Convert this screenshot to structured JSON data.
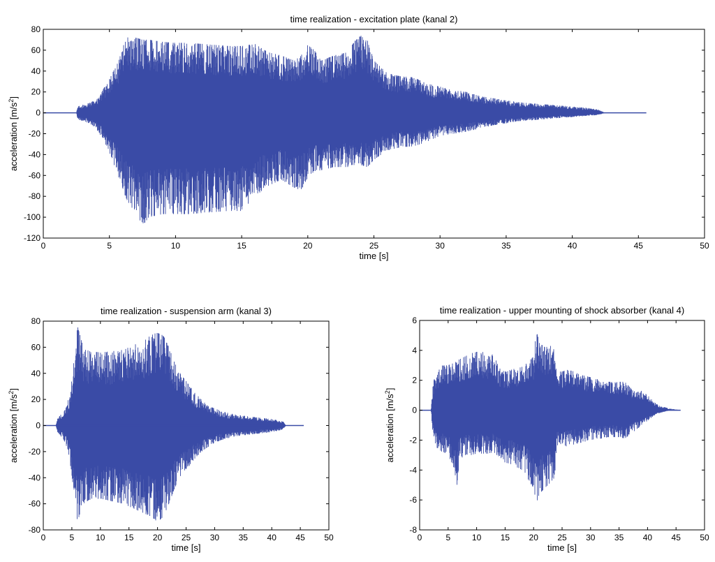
{
  "chart_data": [
    {
      "type": "line",
      "title": "time realization - excitation plate (kanal 2)",
      "xlabel": "time [s]",
      "ylabel": "acceleration [m/s",
      "ylabel_sup": "2",
      "ylabel_end": "]",
      "xlim": [
        0,
        50
      ],
      "ylim": [
        -120,
        80
      ],
      "xticks": [
        0,
        5,
        10,
        15,
        20,
        25,
        30,
        35,
        40,
        45,
        50
      ],
      "yticks": [
        -120,
        -100,
        -80,
        -60,
        -40,
        -20,
        0,
        20,
        40,
        60,
        80
      ],
      "xtick_labels": [
        "0",
        "5",
        "10",
        "15",
        "20",
        "25",
        "30",
        "35",
        "40",
        "45",
        "50"
      ],
      "ytick_labels": [
        "-120",
        "-100",
        "-80",
        "-60",
        "-40",
        "-20",
        "0",
        "20",
        "40",
        "60",
        "80"
      ],
      "color": "#3a4ba6",
      "series": [
        {
          "x": [
            0,
            2.5,
            2.6,
            3.0,
            3.5,
            4.0,
            4.5,
            5.0,
            5.5,
            6.0,
            6.2,
            6.5,
            7.0,
            7.5,
            8,
            9,
            10,
            11,
            12,
            13,
            14,
            15,
            16,
            17,
            18,
            19,
            19.5,
            20,
            20.5,
            21,
            22,
            23,
            23.5,
            24,
            24.5,
            25,
            26,
            27,
            28,
            29,
            30,
            31,
            32,
            33,
            34,
            35,
            36,
            37,
            38,
            39,
            40,
            41,
            42,
            42.5,
            45.6
          ],
          "upper": [
            0,
            0,
            6,
            8,
            10,
            12,
            22,
            32,
            45,
            60,
            80,
            68,
            72,
            70,
            70,
            68,
            67,
            67,
            66,
            65,
            64,
            64,
            66,
            58,
            55,
            50,
            55,
            65,
            60,
            50,
            55,
            58,
            68,
            74,
            70,
            50,
            38,
            35,
            34,
            28,
            25,
            22,
            20,
            16,
            14,
            12,
            10,
            9,
            8,
            7,
            6,
            5,
            3,
            0,
            0
          ],
          "lower": [
            0,
            0,
            -6,
            -8,
            -10,
            -15,
            -25,
            -40,
            -55,
            -72,
            -80,
            -88,
            -95,
            -108,
            -100,
            -97,
            -97,
            -97,
            -96,
            -95,
            -94,
            -94,
            -80,
            -70,
            -64,
            -72,
            -74,
            -62,
            -56,
            -55,
            -52,
            -52,
            -50,
            -50,
            -52,
            -45,
            -36,
            -33,
            -32,
            -28,
            -22,
            -20,
            -18,
            -15,
            -12,
            -10,
            -8,
            -7,
            -6,
            -5,
            -4,
            -3,
            -2,
            0,
            0
          ]
        }
      ]
    },
    {
      "type": "line",
      "title": "time realization - suspension arm (kanal 3)",
      "xlabel": "time [s]",
      "ylabel": "acceleration [m/s",
      "ylabel_sup": "2",
      "ylabel_end": "]",
      "xlim": [
        0,
        50
      ],
      "ylim": [
        -80,
        80
      ],
      "xticks": [
        0,
        5,
        10,
        15,
        20,
        25,
        30,
        35,
        40,
        45,
        50
      ],
      "yticks": [
        -80,
        -60,
        -40,
        -20,
        0,
        20,
        40,
        60,
        80
      ],
      "xtick_labels": [
        "0",
        "5",
        "10",
        "15",
        "20",
        "25",
        "30",
        "35",
        "40",
        "45",
        "50"
      ],
      "ytick_labels": [
        "-80",
        "-60",
        "-40",
        "-20",
        "0",
        "20",
        "40",
        "60",
        "80"
      ],
      "color": "#3a4ba6",
      "series": [
        {
          "x": [
            0,
            2.2,
            2.5,
            3.0,
            3.5,
            4.0,
            4.5,
            5.0,
            5.5,
            6.0,
            6.5,
            7.0,
            8,
            10,
            12,
            14,
            16,
            18,
            19,
            20,
            21,
            22,
            23,
            24,
            25,
            26,
            27,
            28,
            29,
            30,
            32,
            34,
            36,
            38,
            40,
            41,
            42,
            42.5,
            45.6
          ],
          "upper": [
            0,
            0,
            5,
            8,
            10,
            14,
            22,
            35,
            55,
            76,
            68,
            60,
            57,
            56,
            57,
            58,
            62,
            66,
            70,
            71,
            69,
            60,
            48,
            40,
            34,
            28,
            23,
            19,
            16,
            13,
            10,
            8,
            7,
            6,
            5,
            4,
            3,
            0,
            0
          ],
          "lower": [
            0,
            0,
            -5,
            -8,
            -10,
            -15,
            -23,
            -38,
            -58,
            -74,
            -66,
            -60,
            -57,
            -56,
            -58,
            -60,
            -64,
            -68,
            -70,
            -74,
            -70,
            -60,
            -48,
            -40,
            -34,
            -28,
            -23,
            -19,
            -16,
            -13,
            -10,
            -8,
            -7,
            -6,
            -5,
            -4,
            -3,
            0,
            0
          ]
        }
      ]
    },
    {
      "type": "line",
      "title": "time realization - upper mounting of shock absorber (kanal 4)",
      "xlabel": "time [s]",
      "ylabel": "acceleration [m/s",
      "ylabel_sup": "2",
      "ylabel_end": "]",
      "xlim": [
        0,
        50
      ],
      "ylim": [
        -8,
        6
      ],
      "xticks": [
        0,
        5,
        10,
        15,
        20,
        25,
        30,
        35,
        40,
        45,
        50
      ],
      "yticks": [
        -8,
        -6,
        -4,
        -2,
        0,
        2,
        4,
        6
      ],
      "xtick_labels": [
        "0",
        "5",
        "10",
        "15",
        "20",
        "25",
        "30",
        "35",
        "40",
        "45",
        "50"
      ],
      "ytick_labels": [
        "-8",
        "-6",
        "-4",
        "-2",
        "0",
        "2",
        "4",
        "6"
      ],
      "color": "#3a4ba6",
      "series": [
        {
          "x": [
            0,
            2.0,
            2.3,
            2.5,
            3.0,
            4,
            5,
            6,
            6.5,
            7,
            8,
            9,
            10,
            11,
            12,
            13,
            14,
            15,
            16,
            17,
            18,
            19,
            20,
            20.5,
            21,
            22,
            23,
            23.7,
            24,
            25,
            26,
            27,
            28,
            29,
            30,
            31,
            32,
            33,
            34,
            35,
            36,
            37,
            38,
            39,
            40,
            41,
            42,
            43,
            44,
            45.8
          ],
          "upper": [
            0,
            0,
            1.5,
            2.0,
            2.5,
            3.0,
            3.0,
            3.2,
            3.3,
            3.4,
            3.6,
            3.8,
            3.9,
            3.9,
            3.8,
            3.7,
            2.8,
            2.6,
            2.7,
            2.8,
            2.9,
            3.2,
            3.6,
            5.4,
            4.5,
            4.2,
            4.3,
            4.0,
            2.6,
            2.6,
            2.7,
            2.6,
            2.4,
            2.3,
            2.2,
            2.1,
            2.0,
            1.9,
            1.9,
            1.9,
            1.9,
            1.5,
            1.2,
            1.3,
            1.0,
            0.6,
            0.3,
            0.2,
            0.1,
            0
          ],
          "lower": [
            0,
            0,
            -1.5,
            -2.0,
            -2.5,
            -2.8,
            -2.9,
            -4.0,
            -5.2,
            -3.3,
            -3.0,
            -3.0,
            -2.9,
            -2.9,
            -2.9,
            -2.8,
            -3.2,
            -3.5,
            -3.6,
            -3.8,
            -4.0,
            -4.6,
            -5.2,
            -6.2,
            -5.6,
            -5.2,
            -4.8,
            -4.5,
            -2.6,
            -2.5,
            -2.4,
            -2.3,
            -2.2,
            -2.1,
            -2.0,
            -1.9,
            -1.9,
            -1.8,
            -1.8,
            -1.8,
            -1.9,
            -1.6,
            -1.3,
            -1.0,
            -0.7,
            -0.4,
            -0.2,
            -0.1,
            0,
            0
          ]
        }
      ]
    }
  ]
}
